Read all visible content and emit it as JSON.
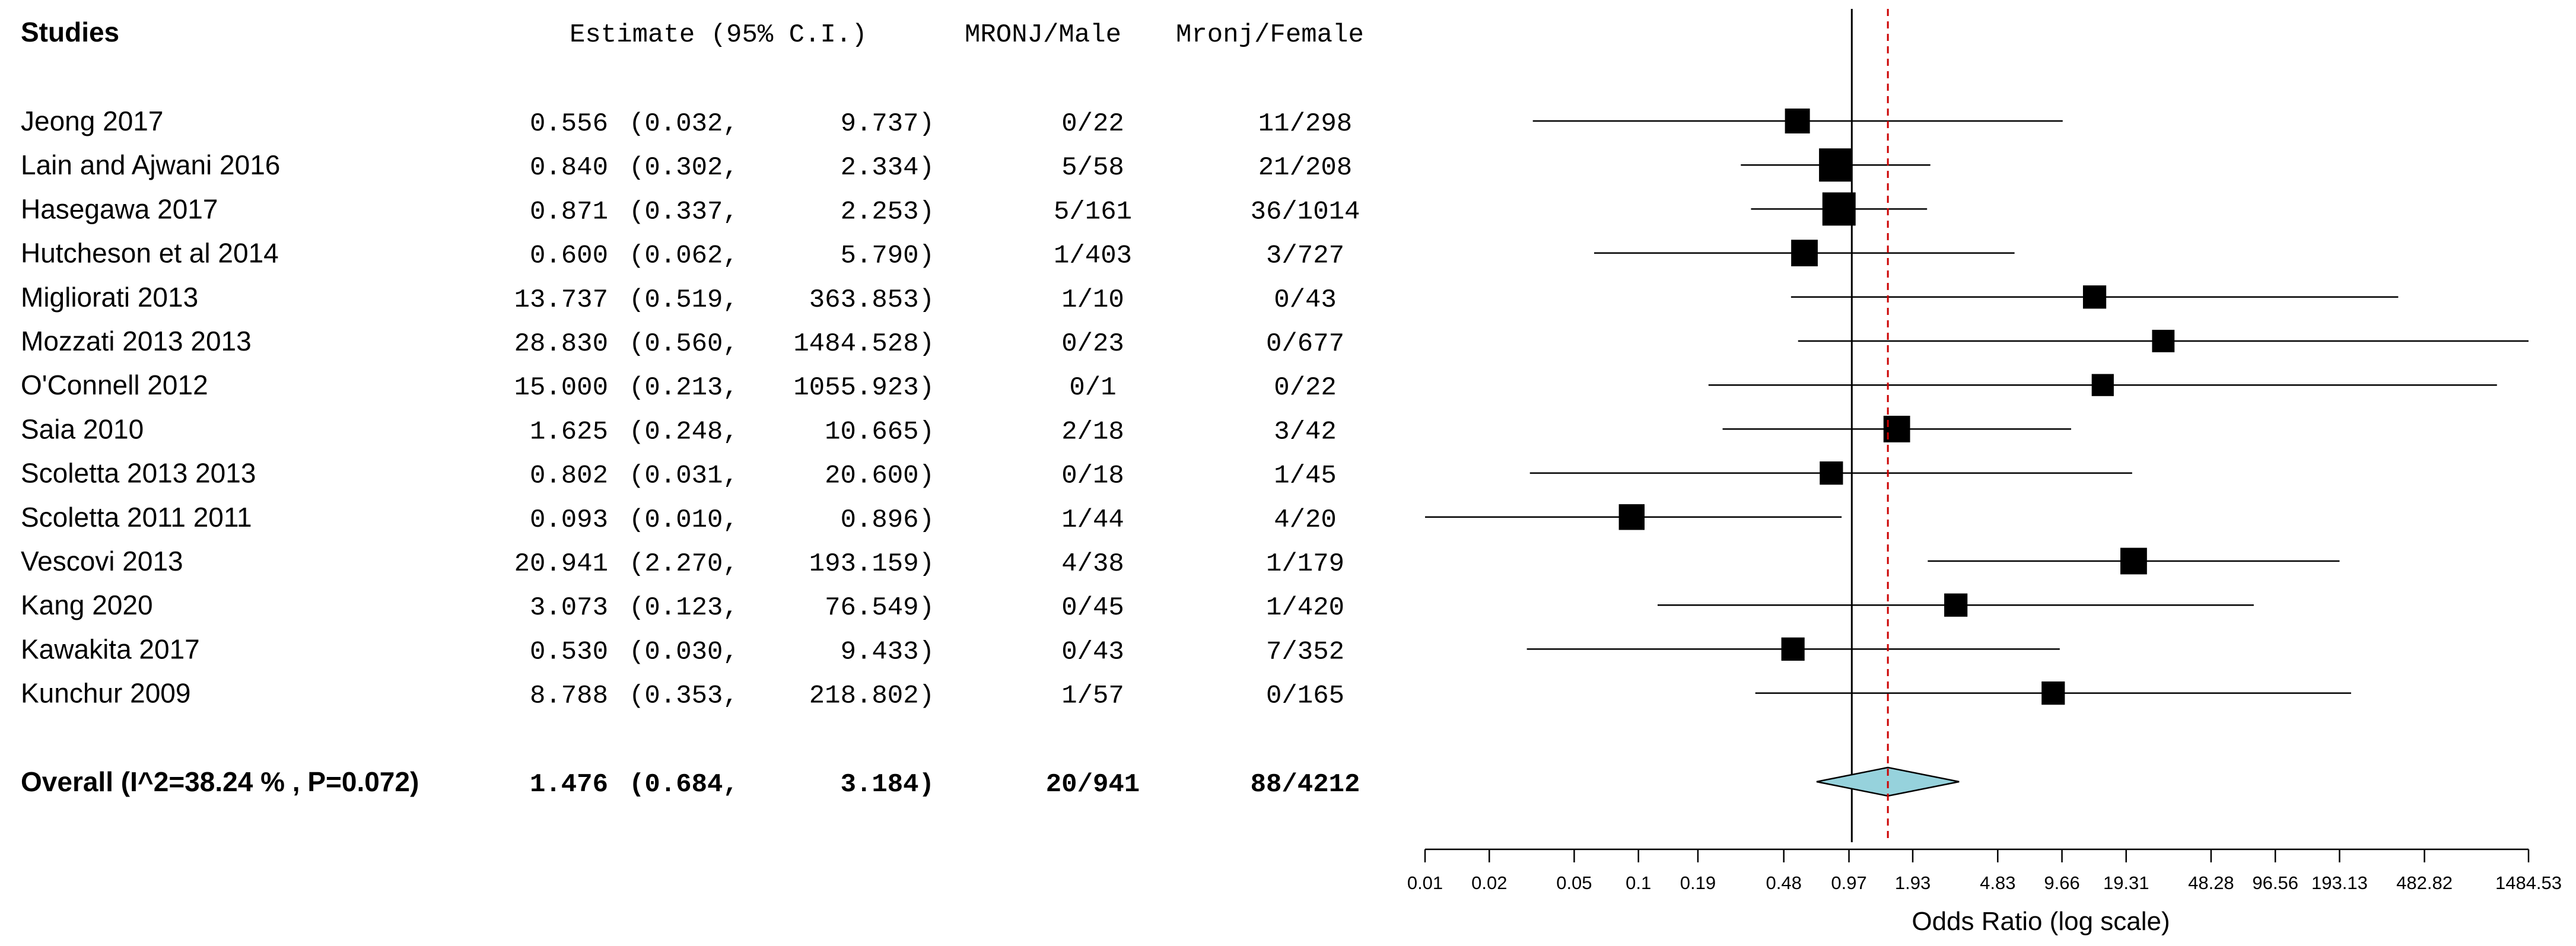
{
  "chart_data": {
    "type": "forest",
    "headers": {
      "studies": "Studies",
      "estimate": "Estimate (95% C.I.)",
      "male": "MRONJ/Male",
      "female": "Mronj/Female"
    },
    "studies": [
      {
        "label": "Jeong  2017",
        "est": 0.556,
        "lo": 0.032,
        "hi": 9.737,
        "est_text": "0.556",
        "lo_text": "(0.032,",
        "hi_text": "9.737)",
        "male": "0/22",
        "female": "11/298",
        "weight": 0.5
      },
      {
        "label": "Lain and Ajwani  2016",
        "est": 0.84,
        "lo": 0.302,
        "hi": 2.334,
        "est_text": "0.840",
        "lo_text": "(0.302,",
        "hi_text": "2.334)",
        "male": "5/58",
        "female": "21/208",
        "weight": 1.0
      },
      {
        "label": "Hasegawa  2017",
        "est": 0.871,
        "lo": 0.337,
        "hi": 2.253,
        "est_text": "0.871",
        "lo_text": "(0.337,",
        "hi_text": "2.253)",
        "male": "5/161",
        "female": "36/1014",
        "weight": 1.0
      },
      {
        "label": "Hutcheson et al 2014",
        "est": 0.6,
        "lo": 0.062,
        "hi": 5.79,
        "est_text": "0.600",
        "lo_text": "(0.062,",
        "hi_text": "5.790)",
        "male": "1/403",
        "female": "3/727",
        "weight": 0.6
      },
      {
        "label": "Migliorati  2013",
        "est": 13.737,
        "lo": 0.519,
        "hi": 363.853,
        "est_text": "13.737",
        "lo_text": "(0.519,",
        "hi_text": "363.853)",
        "male": "1/10",
        "female": "0/43",
        "weight": 0.4
      },
      {
        "label": "Mozzati 2013 2013",
        "est": 28.83,
        "lo": 0.56,
        "hi": 1484.528,
        "est_text": "28.830",
        "lo_text": "(0.560,",
        "hi_text": "1484.528)",
        "male": "0/23",
        "female": "0/677",
        "weight": 0.35
      },
      {
        "label": "O'Connell  2012",
        "est": 15.0,
        "lo": 0.213,
        "hi": 1055.923,
        "est_text": "15.000",
        "lo_text": "(0.213,",
        "hi_text": "1055.923)",
        "male": "0/1",
        "female": "0/22",
        "weight": 0.33
      },
      {
        "label": "Saia  2010",
        "est": 1.625,
        "lo": 0.248,
        "hi": 10.665,
        "est_text": "1.625",
        "lo_text": "(0.248,",
        "hi_text": "10.665)",
        "male": "2/18",
        "female": "3/42",
        "weight": 0.6
      },
      {
        "label": "Scoletta 2013 2013",
        "est": 0.802,
        "lo": 0.031,
        "hi": 20.6,
        "est_text": "0.802",
        "lo_text": "(0.031,",
        "hi_text": "20.600)",
        "male": "0/18",
        "female": "1/45",
        "weight": 0.4
      },
      {
        "label": "Scoletta 2011  2011",
        "est": 0.093,
        "lo": 0.01,
        "hi": 0.896,
        "est_text": "0.093",
        "lo_text": "(0.010,",
        "hi_text": "0.896)",
        "male": "1/44",
        "female": "4/20",
        "weight": 0.55
      },
      {
        "label": "Vescovi  2013",
        "est": 20.941,
        "lo": 2.27,
        "hi": 193.159,
        "est_text": "20.941",
        "lo_text": "(2.270,",
        "hi_text": "193.159)",
        "male": "4/38",
        "female": "1/179",
        "weight": 0.6
      },
      {
        "label": "Kang  2020",
        "est": 3.073,
        "lo": 0.123,
        "hi": 76.549,
        "est_text": "3.073",
        "lo_text": "(0.123,",
        "hi_text": "76.549)",
        "male": "0/45",
        "female": "1/420",
        "weight": 0.4
      },
      {
        "label": "Kawakita  2017",
        "est": 0.53,
        "lo": 0.03,
        "hi": 9.433,
        "est_text": "0.530",
        "lo_text": "(0.030,",
        "hi_text": "9.433)",
        "male": "0/43",
        "female": "7/352",
        "weight": 0.4
      },
      {
        "label": "Kunchur  2009",
        "est": 8.788,
        "lo": 0.353,
        "hi": 218.802,
        "est_text": "8.788",
        "lo_text": "(0.353,",
        "hi_text": "218.802)",
        "male": "1/57",
        "female": "0/165",
        "weight": 0.4
      }
    ],
    "overall": {
      "label": "Overall (I^2=38.24 % , P=0.072)",
      "est": 1.476,
      "lo": 0.684,
      "hi": 3.184,
      "est_text": "1.476",
      "lo_text": "(0.684,",
      "hi_text": "3.184)",
      "male": "20/941",
      "female": "88/4212"
    },
    "null_line": 1,
    "x_scale": "log",
    "x_ticks": [
      0.01,
      0.02,
      0.05,
      0.1,
      0.19,
      0.48,
      0.97,
      1.93,
      4.83,
      9.66,
      19.31,
      48.28,
      96.56,
      193.13,
      482.82,
      1484.53
    ],
    "x_tick_labels": [
      "0.01",
      "0.02",
      "0.05",
      "0.1",
      "0.19",
      "0.48",
      "0.97",
      "1.93",
      "4.83",
      "9.66",
      "19.31",
      "48.28",
      "96.56",
      "193.13",
      "482.82",
      "1484.53"
    ],
    "xlim": [
      0.01,
      1484.53
    ],
    "xlabel": "Odds Ratio (log scale)",
    "colors": {
      "diamond_fill": "#96d2dc",
      "reference_line": "#cc0000",
      "marker": "#000000"
    }
  }
}
